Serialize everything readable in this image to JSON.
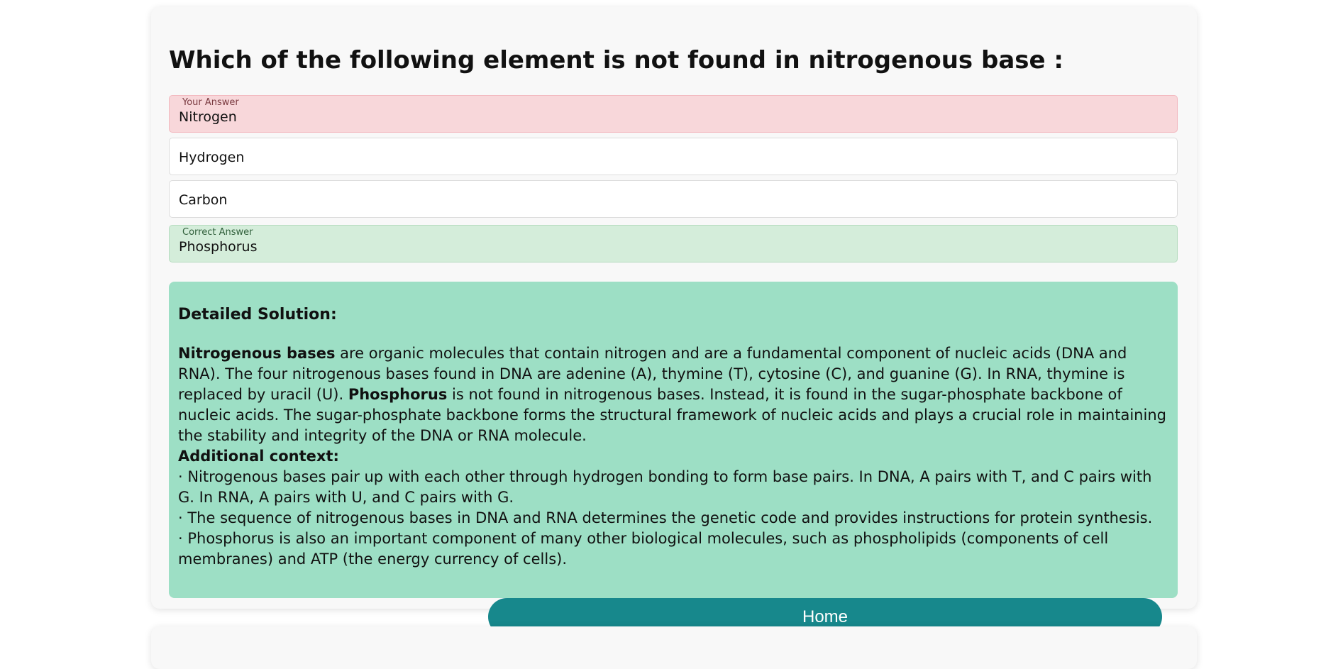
{
  "question": {
    "text": "Which of the following element is not found in nitrogenous base :"
  },
  "options": [
    {
      "text": "Nitrogen",
      "tag": "Your Answer",
      "state": "wrong"
    },
    {
      "text": "Hydrogen",
      "tag": "",
      "state": "neutral"
    },
    {
      "text": "Carbon",
      "tag": "",
      "state": "neutral"
    },
    {
      "text": "Phosphorus",
      "tag": "Correct Answer",
      "state": "correct"
    }
  ],
  "solution": {
    "heading": "Detailed Solution:",
    "p1_bold": "Nitrogenous bases",
    "p1_rest": " are organic molecules that contain nitrogen and are a fundamental component of nucleic acids (DNA and RNA). The four nitrogenous bases found in DNA are adenine (A), thymine (T), cytosine (C), and guanine (G). In RNA, thymine is replaced by uracil (U). ",
    "p1_bold2": "Phosphorus",
    "p1_rest2": " is not found in nitrogenous bases. Instead, it is found in the sugar-phosphate backbone of nucleic acids. The sugar-phosphate backbone forms the structural framework of nucleic acids and plays a crucial role in maintaining the stability and integrity of the DNA or RNA molecule.",
    "context_heading": "Additional context:",
    "bullets": [
      "· Nitrogenous bases pair up with each other through hydrogen bonding to form base pairs. In DNA, A pairs with T, and C pairs with G. In RNA, A pairs with U, and C pairs with G.",
      "· The sequence of nitrogenous bases in DNA and RNA determines the genetic code and provides instructions for protein synthesis.",
      "· Phosphorus is also an important component of many other biological molecules, such as phospholipids (components of cell membranes) and ATP (the energy currency of cells)."
    ]
  },
  "home_button": {
    "label": "Home"
  },
  "colors": {
    "wrong_bg": "#f8d7da",
    "correct_bg": "#d4edda",
    "solution_bg": "#9ddfc5",
    "button_bg": "#17888c"
  }
}
